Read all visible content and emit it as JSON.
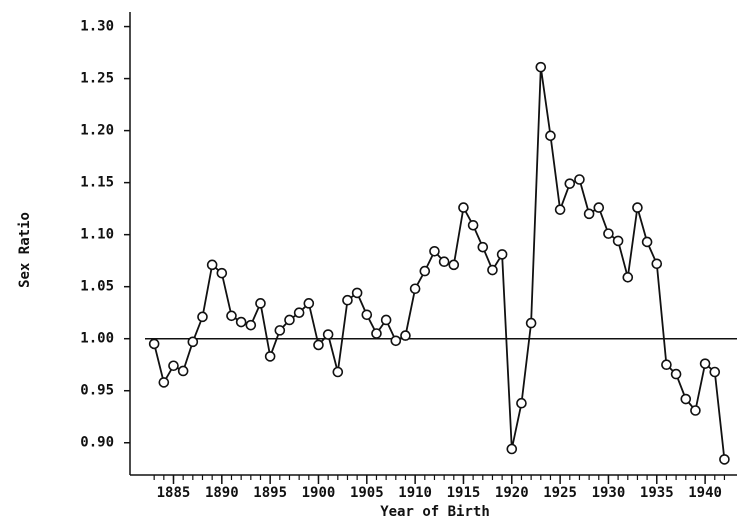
{
  "chart_data": {
    "type": "line",
    "x_label": "Year of Birth",
    "y_label": "Sex Ratio",
    "x": [
      1883,
      1884,
      1885,
      1886,
      1887,
      1888,
      1889,
      1890,
      1891,
      1892,
      1893,
      1894,
      1895,
      1896,
      1897,
      1898,
      1899,
      1900,
      1901,
      1902,
      1903,
      1904,
      1905,
      1906,
      1907,
      1908,
      1909,
      1910,
      1911,
      1912,
      1913,
      1914,
      1915,
      1916,
      1917,
      1918,
      1919,
      1920,
      1921,
      1922,
      1923,
      1924,
      1925,
      1926,
      1927,
      1928,
      1929,
      1930,
      1931,
      1932,
      1933,
      1934,
      1935,
      1936,
      1937,
      1938,
      1939,
      1940,
      1941,
      1942
    ],
    "values": [
      0.995,
      0.958,
      0.974,
      0.969,
      0.997,
      1.021,
      1.071,
      1.063,
      1.022,
      1.016,
      1.013,
      1.034,
      0.983,
      1.008,
      1.018,
      1.025,
      1.034,
      0.994,
      1.004,
      0.968,
      1.037,
      1.044,
      1.023,
      1.005,
      1.018,
      0.998,
      1.003,
      1.048,
      1.065,
      1.084,
      1.074,
      1.071,
      1.126,
      1.109,
      1.088,
      1.066,
      1.081,
      0.894,
      0.938,
      1.015,
      1.261,
      1.195,
      1.124,
      1.149,
      1.153,
      1.12,
      1.126,
      1.101,
      1.094,
      1.059,
      1.126,
      1.093,
      1.072,
      0.975,
      0.966,
      0.942,
      0.931,
      0.976,
      0.968,
      0.884
    ],
    "color": "#111111",
    "reference_line": 1,
    "xlim": [
      1880.5,
      1943.3
    ],
    "ylim": [
      0.869,
      1.314
    ],
    "xticks": [
      1885,
      1890,
      1895,
      1900,
      1905,
      1910,
      1915,
      1920,
      1925,
      1930,
      1935,
      1940
    ],
    "yticks": [
      {
        "value": 0.9,
        "label": "0.90"
      },
      0.95,
      {
        "value": 1,
        "label": "1.00"
      },
      1.05,
      {
        "value": 1.1,
        "label": "1.10"
      },
      1.15,
      {
        "value": 1.2,
        "label": "1.20"
      },
      1.25,
      {
        "value": 1.3,
        "label": "1.30"
      }
    ]
  }
}
